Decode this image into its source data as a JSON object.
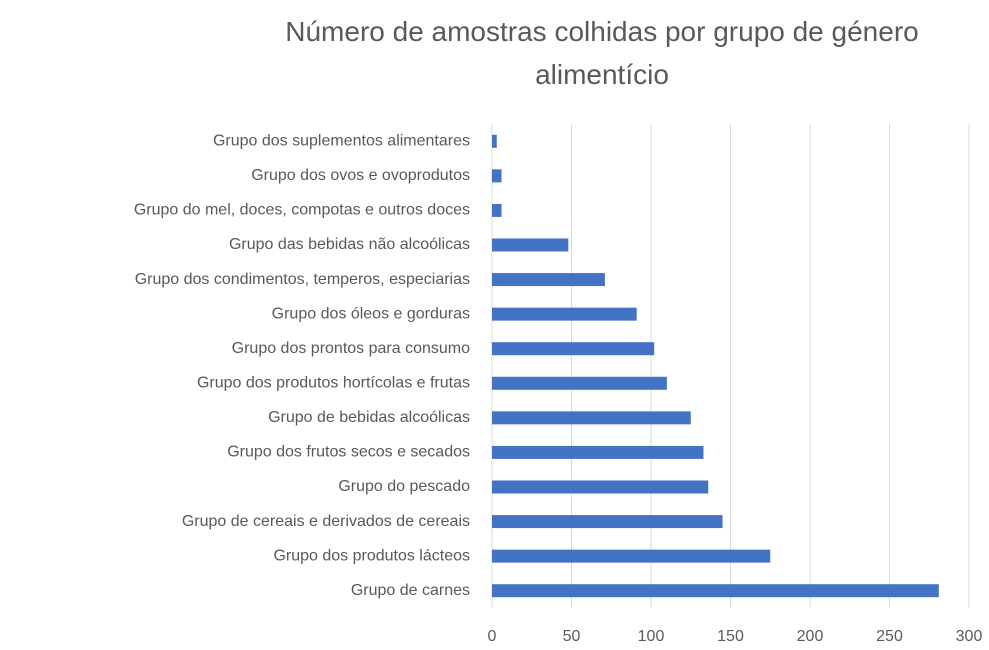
{
  "chart_data": {
    "type": "barh",
    "title": "Número de amostras colhidas por grupo de género alimentício",
    "categories": [
      "Grupo dos suplementos alimentares",
      "Grupo dos ovos e ovoprodutos",
      "Grupo do mel, doces, compotas e outros doces",
      "Grupo das bebidas não alcoólicas",
      "Grupo dos condimentos, temperos, especiarias",
      "Grupo dos óleos e gorduras",
      "Grupo dos prontos para consumo",
      "Grupo dos produtos hortícolas e frutas",
      "Grupo de bebidas alcoólicas",
      "Grupo dos frutos secos e secados",
      "Grupo do pescado",
      "Grupo de cereais e derivados de cereais",
      "Grupo dos produtos lácteos",
      "Grupo de carnes"
    ],
    "values": [
      3,
      6,
      6,
      48,
      71,
      91,
      102,
      110,
      125,
      133,
      136,
      145,
      175,
      281
    ],
    "color": "#4472c4",
    "xlim": [
      0,
      300
    ],
    "xticks": [
      0,
      50,
      100,
      150,
      200,
      250,
      300
    ],
    "grid": true
  }
}
